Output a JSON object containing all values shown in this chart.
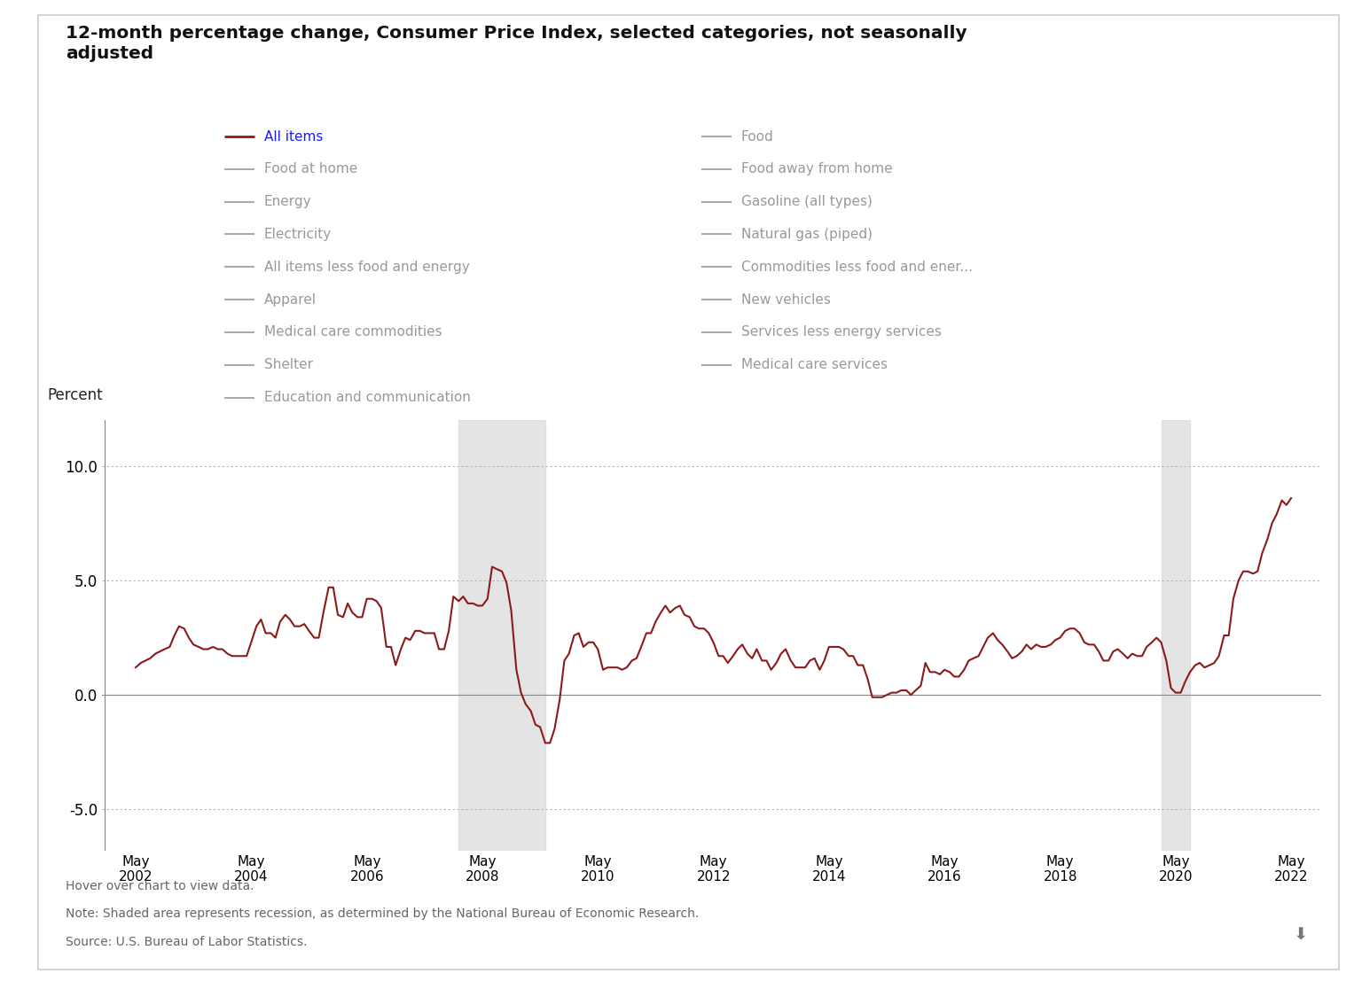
{
  "title_line1": "12-month percentage change, Consumer Price Index, selected categories, not seasonally",
  "title_line2": "adjusted",
  "ylabel": "Percent",
  "line_color": "#8B1A1A",
  "background_color": "#ffffff",
  "recession_shading_1": {
    "start": 2007.917,
    "end": 2009.417
  },
  "recession_shading_2": {
    "start": 2020.083,
    "end": 2020.583
  },
  "yticks": [
    -5.0,
    0.0,
    5.0,
    10.0
  ],
  "ylim": [
    -6.8,
    12.0
  ],
  "xlim_start": 2001.75,
  "xlim_end": 2022.85,
  "xtick_years": [
    2002,
    2004,
    2006,
    2008,
    2010,
    2012,
    2014,
    2016,
    2018,
    2020,
    2022
  ],
  "note_line1": "Hover over chart to view data.",
  "note_line2": "Note: Shaded area represents recession, as determined by the National Bureau of Economic Research.",
  "note_line3": "Source: U.S. Bureau of Labor Statistics.",
  "legend_col1": [
    "All items",
    "Food at home",
    "Energy",
    "Electricity",
    "All items less food and energy",
    "Apparel",
    "Medical care commodities",
    "Shelter",
    "Education and communication"
  ],
  "legend_col2": [
    "Food",
    "Food away from home",
    "Gasoline (all types)",
    "Natural gas (piped)",
    "Commodities less food and ener...",
    "New vehicles",
    "Services less energy services",
    "Medical care services"
  ],
  "months_data": [
    [
      2002.33,
      1.2
    ],
    [
      2002.42,
      1.4
    ],
    [
      2002.5,
      1.5
    ],
    [
      2002.58,
      1.6
    ],
    [
      2002.67,
      1.8
    ],
    [
      2002.75,
      1.9
    ],
    [
      2002.83,
      2.0
    ],
    [
      2002.92,
      2.1
    ],
    [
      2003.0,
      2.6
    ],
    [
      2003.08,
      3.0
    ],
    [
      2003.17,
      2.9
    ],
    [
      2003.25,
      2.5
    ],
    [
      2003.33,
      2.2
    ],
    [
      2003.42,
      2.1
    ],
    [
      2003.5,
      2.0
    ],
    [
      2003.58,
      2.0
    ],
    [
      2003.67,
      2.1
    ],
    [
      2003.75,
      2.0
    ],
    [
      2003.83,
      2.0
    ],
    [
      2003.92,
      1.8
    ],
    [
      2004.0,
      1.7
    ],
    [
      2004.08,
      1.7
    ],
    [
      2004.17,
      1.7
    ],
    [
      2004.25,
      1.7
    ],
    [
      2004.33,
      2.3
    ],
    [
      2004.42,
      3.0
    ],
    [
      2004.5,
      3.3
    ],
    [
      2004.58,
      2.7
    ],
    [
      2004.67,
      2.7
    ],
    [
      2004.75,
      2.5
    ],
    [
      2004.83,
      3.2
    ],
    [
      2004.92,
      3.5
    ],
    [
      2005.0,
      3.3
    ],
    [
      2005.08,
      3.0
    ],
    [
      2005.17,
      3.0
    ],
    [
      2005.25,
      3.1
    ],
    [
      2005.33,
      2.8
    ],
    [
      2005.42,
      2.5
    ],
    [
      2005.5,
      2.5
    ],
    [
      2005.58,
      3.6
    ],
    [
      2005.67,
      4.7
    ],
    [
      2005.75,
      4.7
    ],
    [
      2005.83,
      3.5
    ],
    [
      2005.92,
      3.4
    ],
    [
      2006.0,
      4.0
    ],
    [
      2006.08,
      3.6
    ],
    [
      2006.17,
      3.4
    ],
    [
      2006.25,
      3.4
    ],
    [
      2006.33,
      4.2
    ],
    [
      2006.42,
      4.2
    ],
    [
      2006.5,
      4.1
    ],
    [
      2006.58,
      3.8
    ],
    [
      2006.67,
      2.1
    ],
    [
      2006.75,
      2.1
    ],
    [
      2006.83,
      1.3
    ],
    [
      2006.92,
      2.0
    ],
    [
      2007.0,
      2.5
    ],
    [
      2007.08,
      2.4
    ],
    [
      2007.17,
      2.8
    ],
    [
      2007.25,
      2.8
    ],
    [
      2007.33,
      2.7
    ],
    [
      2007.42,
      2.7
    ],
    [
      2007.5,
      2.7
    ],
    [
      2007.58,
      2.0
    ],
    [
      2007.67,
      2.0
    ],
    [
      2007.75,
      2.8
    ],
    [
      2007.83,
      4.3
    ],
    [
      2007.92,
      4.1
    ],
    [
      2008.0,
      4.3
    ],
    [
      2008.08,
      4.0
    ],
    [
      2008.17,
      4.0
    ],
    [
      2008.25,
      3.9
    ],
    [
      2008.33,
      3.9
    ],
    [
      2008.42,
      4.2
    ],
    [
      2008.5,
      5.6
    ],
    [
      2008.58,
      5.5
    ],
    [
      2008.67,
      5.4
    ],
    [
      2008.75,
      4.9
    ],
    [
      2008.83,
      3.7
    ],
    [
      2008.92,
      1.1
    ],
    [
      2009.0,
      0.1
    ],
    [
      2009.08,
      -0.4
    ],
    [
      2009.17,
      -0.7
    ],
    [
      2009.25,
      -1.3
    ],
    [
      2009.33,
      -1.4
    ],
    [
      2009.42,
      -2.1
    ],
    [
      2009.5,
      -2.1
    ],
    [
      2009.58,
      -1.5
    ],
    [
      2009.67,
      -0.2
    ],
    [
      2009.75,
      1.5
    ],
    [
      2009.83,
      1.8
    ],
    [
      2009.92,
      2.6
    ],
    [
      2010.0,
      2.7
    ],
    [
      2010.08,
      2.1
    ],
    [
      2010.17,
      2.3
    ],
    [
      2010.25,
      2.3
    ],
    [
      2010.33,
      2.0
    ],
    [
      2010.42,
      1.1
    ],
    [
      2010.5,
      1.2
    ],
    [
      2010.58,
      1.2
    ],
    [
      2010.67,
      1.2
    ],
    [
      2010.75,
      1.1
    ],
    [
      2010.83,
      1.2
    ],
    [
      2010.92,
      1.5
    ],
    [
      2011.0,
      1.6
    ],
    [
      2011.08,
      2.1
    ],
    [
      2011.17,
      2.7
    ],
    [
      2011.25,
      2.7
    ],
    [
      2011.33,
      3.2
    ],
    [
      2011.42,
      3.6
    ],
    [
      2011.5,
      3.9
    ],
    [
      2011.58,
      3.6
    ],
    [
      2011.67,
      3.8
    ],
    [
      2011.75,
      3.9
    ],
    [
      2011.83,
      3.5
    ],
    [
      2011.92,
      3.4
    ],
    [
      2012.0,
      3.0
    ],
    [
      2012.08,
      2.9
    ],
    [
      2012.17,
      2.9
    ],
    [
      2012.25,
      2.7
    ],
    [
      2012.33,
      2.3
    ],
    [
      2012.42,
      1.7
    ],
    [
      2012.5,
      1.7
    ],
    [
      2012.58,
      1.4
    ],
    [
      2012.67,
      1.7
    ],
    [
      2012.75,
      2.0
    ],
    [
      2012.83,
      2.2
    ],
    [
      2012.92,
      1.8
    ],
    [
      2013.0,
      1.6
    ],
    [
      2013.08,
      2.0
    ],
    [
      2013.17,
      1.5
    ],
    [
      2013.25,
      1.5
    ],
    [
      2013.33,
      1.1
    ],
    [
      2013.42,
      1.4
    ],
    [
      2013.5,
      1.8
    ],
    [
      2013.58,
      2.0
    ],
    [
      2013.67,
      1.5
    ],
    [
      2013.75,
      1.2
    ],
    [
      2013.83,
      1.2
    ],
    [
      2013.92,
      1.2
    ],
    [
      2014.0,
      1.5
    ],
    [
      2014.08,
      1.6
    ],
    [
      2014.17,
      1.1
    ],
    [
      2014.25,
      1.5
    ],
    [
      2014.33,
      2.1
    ],
    [
      2014.42,
      2.1
    ],
    [
      2014.5,
      2.1
    ],
    [
      2014.58,
      2.0
    ],
    [
      2014.67,
      1.7
    ],
    [
      2014.75,
      1.7
    ],
    [
      2014.83,
      1.3
    ],
    [
      2014.92,
      1.3
    ],
    [
      2015.0,
      0.7
    ],
    [
      2015.08,
      -0.1
    ],
    [
      2015.17,
      -0.1
    ],
    [
      2015.25,
      -0.1
    ],
    [
      2015.33,
      0.0
    ],
    [
      2015.42,
      0.1
    ],
    [
      2015.5,
      0.1
    ],
    [
      2015.58,
      0.2
    ],
    [
      2015.67,
      0.2
    ],
    [
      2015.75,
      0.0
    ],
    [
      2015.83,
      0.2
    ],
    [
      2015.92,
      0.4
    ],
    [
      2016.0,
      1.4
    ],
    [
      2016.08,
      1.0
    ],
    [
      2016.17,
      1.0
    ],
    [
      2016.25,
      0.9
    ],
    [
      2016.33,
      1.1
    ],
    [
      2016.42,
      1.0
    ],
    [
      2016.5,
      0.8
    ],
    [
      2016.58,
      0.8
    ],
    [
      2016.67,
      1.1
    ],
    [
      2016.75,
      1.5
    ],
    [
      2016.83,
      1.6
    ],
    [
      2016.92,
      1.7
    ],
    [
      2017.0,
      2.1
    ],
    [
      2017.08,
      2.5
    ],
    [
      2017.17,
      2.7
    ],
    [
      2017.25,
      2.4
    ],
    [
      2017.33,
      2.2
    ],
    [
      2017.42,
      1.9
    ],
    [
      2017.5,
      1.6
    ],
    [
      2017.58,
      1.7
    ],
    [
      2017.67,
      1.9
    ],
    [
      2017.75,
      2.2
    ],
    [
      2017.83,
      2.0
    ],
    [
      2017.92,
      2.2
    ],
    [
      2018.0,
      2.1
    ],
    [
      2018.08,
      2.1
    ],
    [
      2018.17,
      2.2
    ],
    [
      2018.25,
      2.4
    ],
    [
      2018.33,
      2.5
    ],
    [
      2018.42,
      2.8
    ],
    [
      2018.5,
      2.9
    ],
    [
      2018.58,
      2.9
    ],
    [
      2018.67,
      2.7
    ],
    [
      2018.75,
      2.3
    ],
    [
      2018.83,
      2.2
    ],
    [
      2018.92,
      2.2
    ],
    [
      2019.0,
      1.9
    ],
    [
      2019.08,
      1.5
    ],
    [
      2019.17,
      1.5
    ],
    [
      2019.25,
      1.9
    ],
    [
      2019.33,
      2.0
    ],
    [
      2019.42,
      1.8
    ],
    [
      2019.5,
      1.6
    ],
    [
      2019.58,
      1.8
    ],
    [
      2019.67,
      1.7
    ],
    [
      2019.75,
      1.7
    ],
    [
      2019.83,
      2.1
    ],
    [
      2019.92,
      2.3
    ],
    [
      2020.0,
      2.5
    ],
    [
      2020.08,
      2.3
    ],
    [
      2020.17,
      1.5
    ],
    [
      2020.25,
      0.3
    ],
    [
      2020.33,
      0.1
    ],
    [
      2020.42,
      0.1
    ],
    [
      2020.5,
      0.6
    ],
    [
      2020.58,
      1.0
    ],
    [
      2020.67,
      1.3
    ],
    [
      2020.75,
      1.4
    ],
    [
      2020.83,
      1.2
    ],
    [
      2020.92,
      1.3
    ],
    [
      2021.0,
      1.4
    ],
    [
      2021.08,
      1.7
    ],
    [
      2021.17,
      2.6
    ],
    [
      2021.25,
      2.6
    ],
    [
      2021.33,
      4.2
    ],
    [
      2021.42,
      5.0
    ],
    [
      2021.5,
      5.4
    ],
    [
      2021.58,
      5.4
    ],
    [
      2021.67,
      5.3
    ],
    [
      2021.75,
      5.4
    ],
    [
      2021.83,
      6.2
    ],
    [
      2021.92,
      6.8
    ],
    [
      2022.0,
      7.5
    ],
    [
      2022.08,
      7.9
    ],
    [
      2022.17,
      8.5
    ],
    [
      2022.25,
      8.3
    ],
    [
      2022.33,
      8.6
    ]
  ]
}
